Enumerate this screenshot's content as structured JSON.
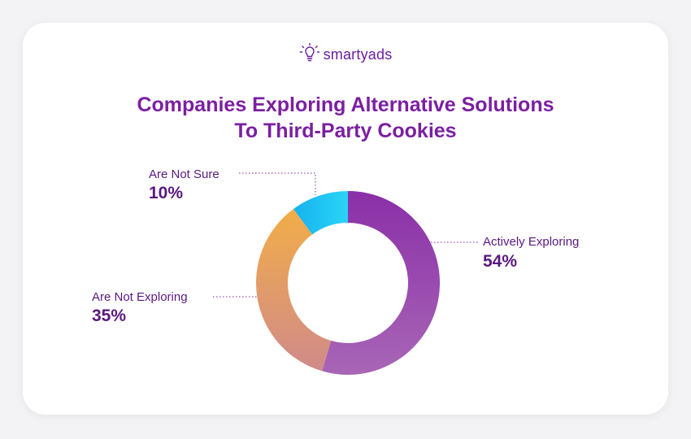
{
  "logo": {
    "text": "smartyads"
  },
  "title_line1": "Companies Exploring Alternative Solutions",
  "title_line2": "To Third-Party Cookies",
  "chart_data": {
    "type": "pie",
    "variant": "donut",
    "title": "Companies Exploring Alternative Solutions To Third-Party Cookies",
    "slices": [
      {
        "label": "Actively Exploring",
        "value": 54,
        "value_label": "54%",
        "colors": [
          "#8a2fa8",
          "#a866b6"
        ]
      },
      {
        "label": "Are Not Exploring",
        "value": 35,
        "value_label": "35%",
        "colors": [
          "#d08a8a",
          "#f2ad48"
        ]
      },
      {
        "label": "Are Not Sure",
        "value": 10,
        "value_label": "10%",
        "colors": [
          "#16b2ee",
          "#2ad4f6"
        ]
      }
    ]
  }
}
